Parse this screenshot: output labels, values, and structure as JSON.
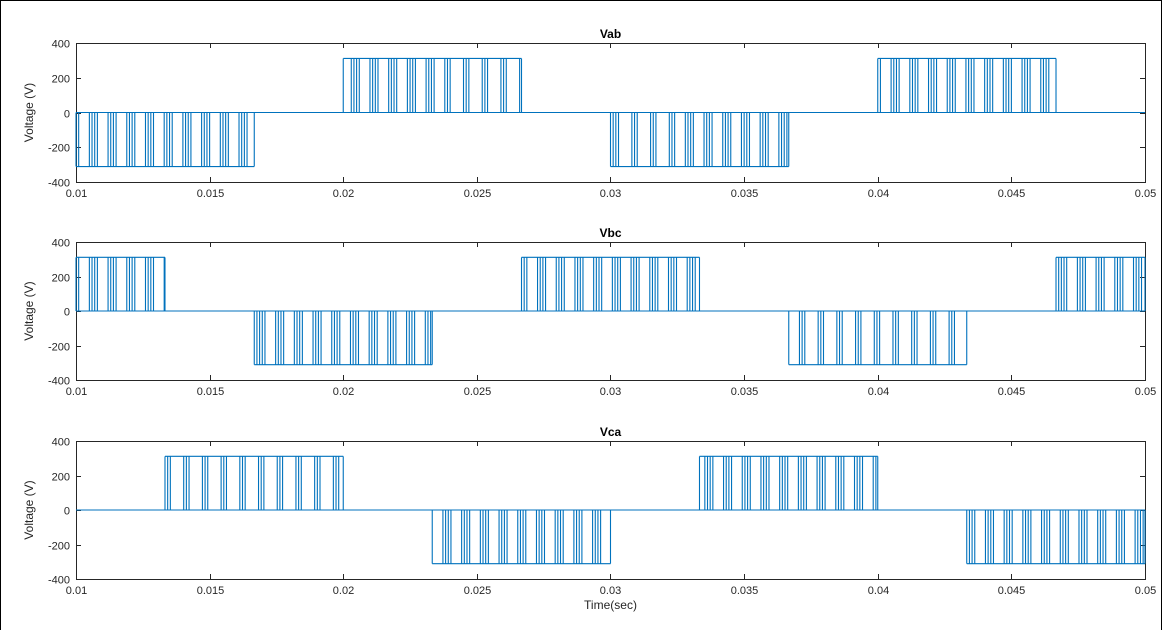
{
  "figure": {
    "line_color": "#0072BD",
    "frame_color": "#000000"
  },
  "chart_data": [
    {
      "type": "line",
      "title": "Vab",
      "xlabel": "",
      "ylabel": "Voltage (V)",
      "xlim": [
        0.01,
        0.05
      ],
      "ylim": [
        -400,
        400
      ],
      "x_ticks": [
        0.01,
        0.015,
        0.02,
        0.025,
        0.03,
        0.035,
        0.04,
        0.045,
        0.05
      ],
      "x_tick_labels": [
        "0.01",
        "0.015",
        "0.02",
        "0.025",
        "0.03",
        "0.035",
        "0.04",
        "0.045",
        "0.05"
      ],
      "y_ticks": [
        -400,
        -200,
        0,
        200,
        400
      ],
      "y_tick_labels": [
        "-400",
        "-200",
        "0",
        "200",
        "400"
      ],
      "pulse_amplitude": 311,
      "segments": [
        {
          "x_start": 0.01,
          "x_end": 0.01667,
          "level": -311
        },
        {
          "x_start": 0.02,
          "x_end": 0.02667,
          "level": 311
        },
        {
          "x_start": 0.03,
          "x_end": 0.03667,
          "level": -311
        },
        {
          "x_start": 0.04,
          "x_end": 0.04667,
          "level": 311
        }
      ]
    },
    {
      "type": "line",
      "title": "Vbc",
      "xlabel": "",
      "ylabel": "Voltage (V)",
      "xlim": [
        0.01,
        0.05
      ],
      "ylim": [
        -400,
        400
      ],
      "x_ticks": [
        0.01,
        0.015,
        0.02,
        0.025,
        0.03,
        0.035,
        0.04,
        0.045,
        0.05
      ],
      "x_tick_labels": [
        "0.01",
        "0.015",
        "0.02",
        "0.025",
        "0.03",
        "0.035",
        "0.04",
        "0.045",
        "0.05"
      ],
      "y_ticks": [
        -400,
        -200,
        0,
        200,
        400
      ],
      "y_tick_labels": [
        "-400",
        "-200",
        "0",
        "200",
        "400"
      ],
      "pulse_amplitude": 311,
      "segments": [
        {
          "x_start": 0.01,
          "x_end": 0.01333,
          "level": 311
        },
        {
          "x_start": 0.01667,
          "x_end": 0.02333,
          "level": -311
        },
        {
          "x_start": 0.02667,
          "x_end": 0.03333,
          "level": 311
        },
        {
          "x_start": 0.03667,
          "x_end": 0.04333,
          "level": -311
        },
        {
          "x_start": 0.04667,
          "x_end": 0.05,
          "level": 311
        }
      ]
    },
    {
      "type": "line",
      "title": "Vca",
      "xlabel": "Time(sec)",
      "ylabel": "Voltage (V)",
      "xlim": [
        0.01,
        0.05
      ],
      "ylim": [
        -400,
        400
      ],
      "x_ticks": [
        0.01,
        0.015,
        0.02,
        0.025,
        0.03,
        0.035,
        0.04,
        0.045,
        0.05
      ],
      "x_tick_labels": [
        "0.01",
        "0.015",
        "0.02",
        "0.025",
        "0.03",
        "0.035",
        "0.04",
        "0.045",
        "0.05"
      ],
      "y_ticks": [
        -400,
        -200,
        0,
        200,
        400
      ],
      "y_tick_labels": [
        "-400",
        "-200",
        "0",
        "200",
        "400"
      ],
      "pulse_amplitude": 311,
      "segments": [
        {
          "x_start": 0.01333,
          "x_end": 0.02,
          "level": 311
        },
        {
          "x_start": 0.02333,
          "x_end": 0.03,
          "level": -311
        },
        {
          "x_start": 0.03333,
          "x_end": 0.04,
          "level": 311
        },
        {
          "x_start": 0.04333,
          "x_end": 0.05,
          "level": -311
        }
      ]
    }
  ]
}
